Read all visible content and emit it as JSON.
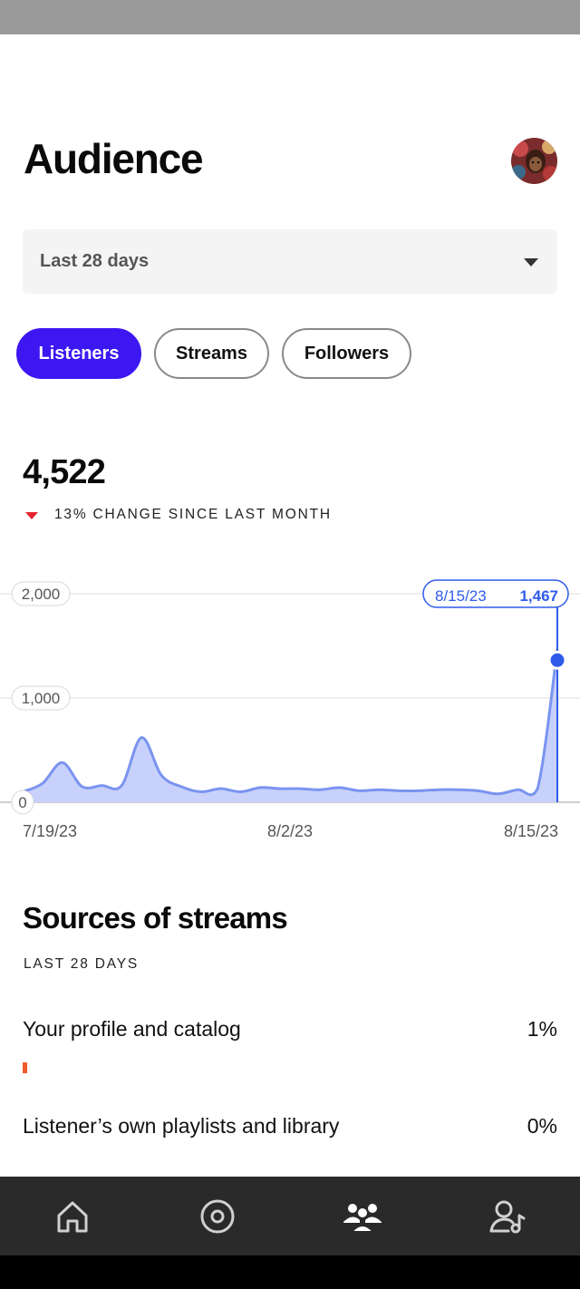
{
  "page": {
    "title": "Audience"
  },
  "header": {
    "avatar_icon": "avatar-photo"
  },
  "range_select": {
    "selected": "Last 28 days",
    "icon": "caret-down-icon"
  },
  "tabs": [
    {
      "label": "Listeners",
      "active": true
    },
    {
      "label": "Streams",
      "active": false
    },
    {
      "label": "Followers",
      "active": false
    }
  ],
  "metric": {
    "value": "4,522",
    "change": "13% CHANGE SINCE LAST MONTH",
    "direction": "down",
    "change_color": "#e3222b"
  },
  "chart_data": {
    "type": "area",
    "x": [
      "7/19/23",
      "7/20/23",
      "7/21/23",
      "7/22/23",
      "7/23/23",
      "7/24/23",
      "7/25/23",
      "7/26/23",
      "7/27/23",
      "7/28/23",
      "7/29/23",
      "7/30/23",
      "7/31/23",
      "8/1/23",
      "8/2/23",
      "8/3/23",
      "8/4/23",
      "8/5/23",
      "8/6/23",
      "8/7/23",
      "8/8/23",
      "8/9/23",
      "8/10/23",
      "8/11/23",
      "8/12/23",
      "8/13/23",
      "8/14/23",
      "8/15/23"
    ],
    "values": [
      100,
      180,
      380,
      150,
      160,
      160,
      620,
      260,
      150,
      100,
      130,
      100,
      140,
      130,
      130,
      120,
      140,
      110,
      120,
      110,
      110,
      120,
      120,
      110,
      80,
      120,
      130,
      1467
    ],
    "x_tick_labels": [
      "7/19/23",
      "8/2/23",
      "8/15/23"
    ],
    "y_ticks": [
      "0",
      "1,000",
      "2,000"
    ],
    "ylim": [
      0,
      2000
    ],
    "tooltip": {
      "date": "8/15/23",
      "value": "1,467"
    },
    "series_color": "#2f5bea",
    "fill_color": "#c8d1fb",
    "grid": true
  },
  "sources": {
    "title": "Sources of streams",
    "subtitle": "LAST 28 DAYS",
    "items": [
      {
        "label": "Your profile and catalog",
        "percent": "1%",
        "fraction": 0.01,
        "color": "#ef5a2d"
      },
      {
        "label": "Listener’s own playlists and library",
        "percent": "0%",
        "fraction": 0.0
      }
    ]
  },
  "bottom_nav": [
    {
      "icon": "home-icon",
      "active": false
    },
    {
      "icon": "music-disc-icon",
      "active": false
    },
    {
      "icon": "audience-icon",
      "active": true
    },
    {
      "icon": "artist-profile-icon",
      "active": false
    }
  ]
}
